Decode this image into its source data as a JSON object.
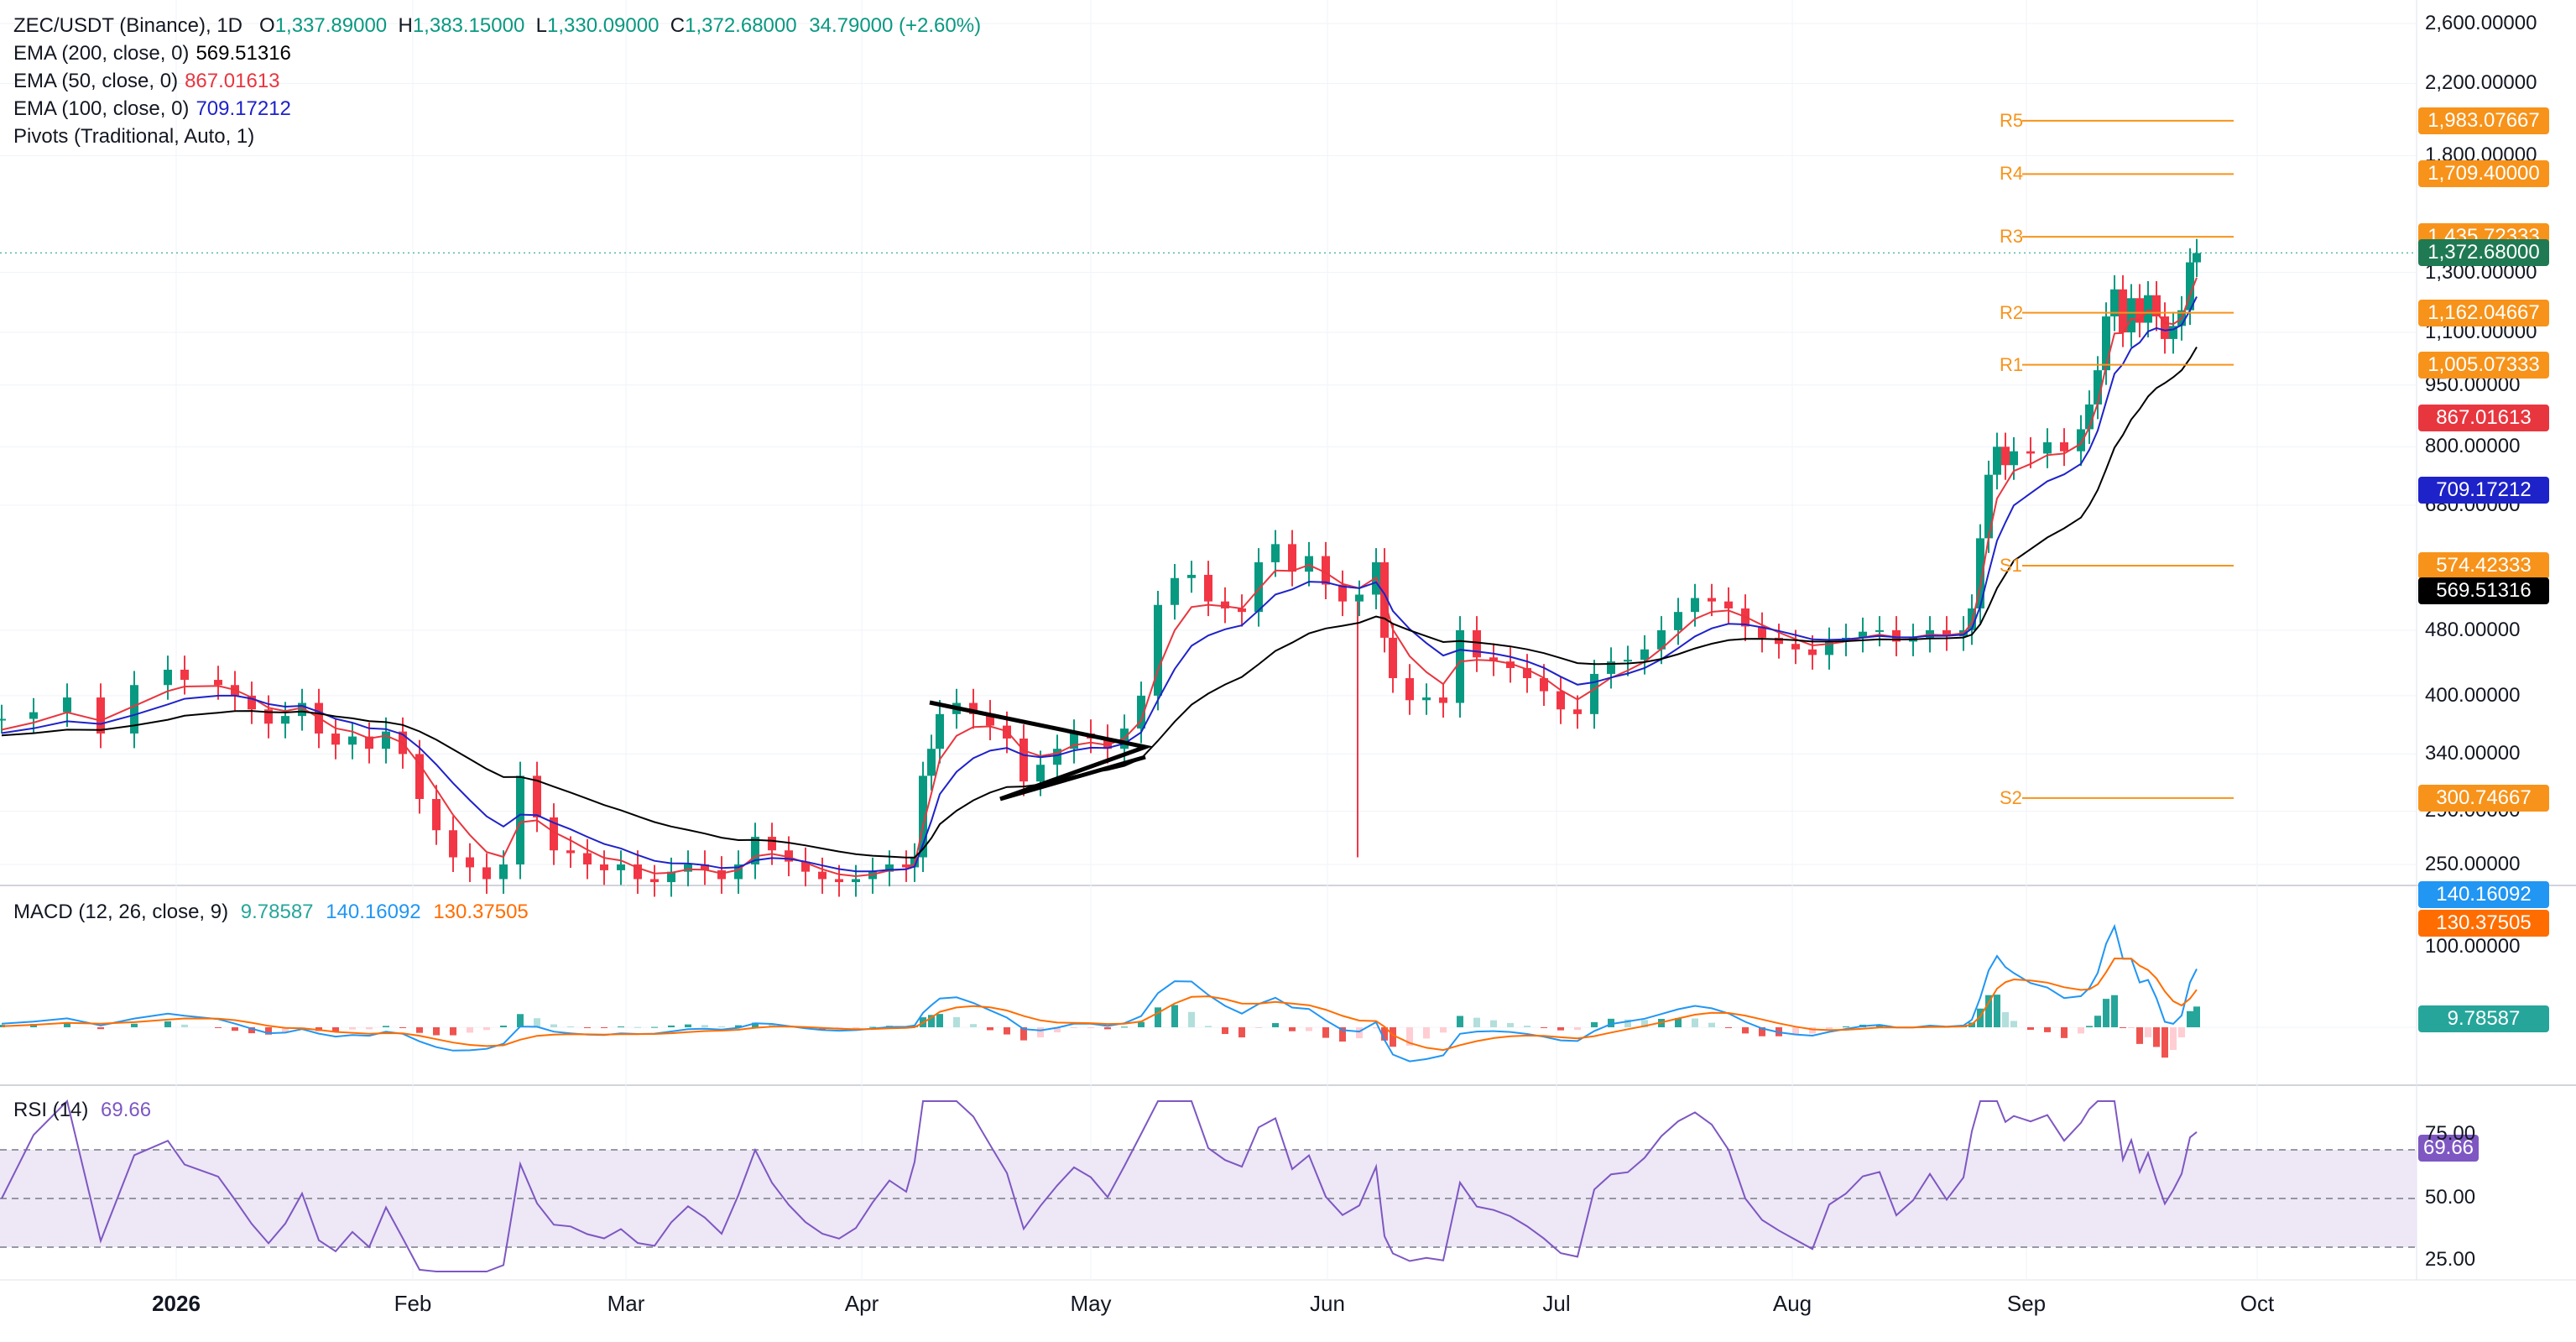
{
  "chart_data": {
    "type": "candlestick",
    "symbol": "ZEC/USDT",
    "exchange": "Binance",
    "interval": "1D",
    "ohlc": {
      "o": "1,337.89000",
      "h": "1,383.15000",
      "l": "1,330.09000",
      "c": "1,372.68000",
      "chg": "34.79000 (+2.60%)"
    },
    "last_price": "1,372.68000",
    "price_axis": {
      "type": "log",
      "range": [
        230,
        2650
      ],
      "ticks": [
        "2,600.00000",
        "2,200.00000",
        "1,800.00000",
        "1,300.00000",
        "1,100.00000",
        "950.00000",
        "800.00000",
        "680.00000",
        "480.00000",
        "400.00000",
        "340.00000",
        "290.00000",
        "250.00000"
      ]
    },
    "x_axis_labels": [
      "2026",
      "Feb",
      "Mar",
      "Apr",
      "May",
      "Jun",
      "Jul",
      "Aug",
      "Sep",
      "Oct"
    ],
    "candles_daily_close_approx": [
      [
        1,
        375
      ],
      [
        20,
        382
      ],
      [
        40,
        398
      ],
      [
        60,
        360
      ],
      [
        80,
        412
      ],
      [
        100,
        430
      ],
      [
        110,
        418
      ],
      [
        130,
        412
      ],
      [
        140,
        400
      ],
      [
        150,
        385
      ],
      [
        160,
        370
      ],
      [
        170,
        378
      ],
      [
        180,
        392
      ],
      [
        190,
        360
      ],
      [
        200,
        349
      ],
      [
        210,
        357
      ],
      [
        220,
        345
      ],
      [
        230,
        362
      ],
      [
        240,
        340
      ],
      [
        250,
        300
      ],
      [
        260,
        275
      ],
      [
        270,
        255
      ],
      [
        280,
        248
      ],
      [
        290,
        240
      ],
      [
        300,
        250
      ],
      [
        310,
        320
      ],
      [
        320,
        285
      ],
      [
        330,
        260
      ],
      [
        340,
        258
      ],
      [
        350,
        250
      ],
      [
        360,
        246
      ],
      [
        370,
        250
      ],
      [
        380,
        240
      ],
      [
        390,
        238
      ],
      [
        400,
        245
      ],
      [
        410,
        250
      ],
      [
        420,
        246
      ],
      [
        430,
        240
      ],
      [
        440,
        250
      ],
      [
        450,
        270
      ],
      [
        460,
        260
      ],
      [
        470,
        252
      ],
      [
        480,
        245
      ],
      [
        490,
        240
      ],
      [
        500,
        238
      ],
      [
        510,
        240
      ],
      [
        520,
        245
      ],
      [
        530,
        250
      ],
      [
        540,
        248
      ],
      [
        545,
        255
      ],
      [
        550,
        320
      ],
      [
        555,
        345
      ],
      [
        560,
        380
      ],
      [
        570,
        392
      ],
      [
        580,
        380
      ],
      [
        590,
        368
      ],
      [
        600,
        355
      ],
      [
        610,
        315
      ],
      [
        620,
        330
      ],
      [
        630,
        345
      ],
      [
        640,
        360
      ],
      [
        650,
        355
      ],
      [
        660,
        345
      ],
      [
        670,
        365
      ],
      [
        680,
        400
      ],
      [
        690,
        515
      ],
      [
        700,
        555
      ],
      [
        710,
        560
      ],
      [
        720,
        520
      ],
      [
        730,
        510
      ],
      [
        740,
        505
      ],
      [
        750,
        580
      ],
      [
        760,
        610
      ],
      [
        770,
        565
      ],
      [
        780,
        590
      ],
      [
        790,
        545
      ],
      [
        800,
        520
      ],
      [
        810,
        530
      ],
      [
        820,
        580
      ],
      [
        825,
        470
      ],
      [
        830,
        420
      ],
      [
        840,
        395
      ],
      [
        850,
        398
      ],
      [
        860,
        392
      ],
      [
        870,
        480
      ],
      [
        880,
        445
      ],
      [
        890,
        440
      ],
      [
        900,
        432
      ],
      [
        910,
        420
      ],
      [
        920,
        405
      ],
      [
        930,
        385
      ],
      [
        940,
        380
      ],
      [
        950,
        425
      ],
      [
        960,
        440
      ],
      [
        970,
        442
      ],
      [
        980,
        455
      ],
      [
        990,
        480
      ],
      [
        1000,
        505
      ],
      [
        1010,
        525
      ],
      [
        1020,
        520
      ],
      [
        1030,
        510
      ],
      [
        1040,
        485
      ],
      [
        1050,
        470
      ],
      [
        1060,
        462
      ],
      [
        1070,
        455
      ],
      [
        1080,
        448
      ],
      [
        1090,
        465
      ],
      [
        1100,
        470
      ],
      [
        1110,
        478
      ],
      [
        1120,
        480
      ],
      [
        1130,
        465
      ],
      [
        1140,
        470
      ],
      [
        1150,
        480
      ],
      [
        1160,
        472
      ],
      [
        1170,
        480
      ],
      [
        1175,
        510
      ],
      [
        1180,
        620
      ],
      [
        1185,
        740
      ],
      [
        1190,
        800
      ],
      [
        1195,
        760
      ],
      [
        1200,
        790
      ],
      [
        1210,
        785
      ],
      [
        1220,
        810
      ],
      [
        1230,
        790
      ],
      [
        1240,
        840
      ],
      [
        1245,
        900
      ],
      [
        1250,
        990
      ],
      [
        1255,
        1150
      ],
      [
        1260,
        1240
      ],
      [
        1265,
        1100
      ],
      [
        1270,
        1210
      ],
      [
        1275,
        1130
      ],
      [
        1280,
        1220
      ],
      [
        1285,
        1150
      ],
      [
        1290,
        1080
      ],
      [
        1295,
        1120
      ],
      [
        1300,
        1170
      ],
      [
        1305,
        1337
      ],
      [
        1309,
        1372
      ]
    ],
    "indicators": {
      "ema200": {
        "label": "EMA (200, close, 0)",
        "value": "569.51316",
        "color": "#000000"
      },
      "ema50": {
        "label": "EMA (50, close, 0)",
        "value": "867.01613",
        "color": "#e8363f"
      },
      "ema100": {
        "label": "EMA (100, close, 0)",
        "value": "709.17212",
        "color": "#1e22c9"
      },
      "pivots": {
        "label": "Pivots (Traditional, Auto, 1)",
        "color": "#f7931a",
        "levels": [
          {
            "name": "R5",
            "value": "1,983.07667",
            "v": 1983.07667
          },
          {
            "name": "R4",
            "value": "1,709.40000",
            "v": 1709.4
          },
          {
            "name": "R3",
            "value": "1,435.72333",
            "v": 1435.72333
          },
          {
            "name": "R2",
            "value": "1,162.04667",
            "v": 1162.04667
          },
          {
            "name": "R1",
            "value": "1,005.07333",
            "v": 1005.07333
          },
          {
            "name": "S1",
            "value": "574.42333",
            "v": 574.42333
          },
          {
            "name": "S2",
            "value": "300.74667",
            "v": 300.74667
          }
        ]
      },
      "macd": {
        "label": "MACD (12, 26, close, 9)",
        "hist": "9.78587",
        "macd": "140.16092",
        "signal": "130.37505",
        "axis_tick": "100.00000",
        "colors": {
          "macd": "#2196f3",
          "signal": "#ff6d00",
          "hist_up": "#26a69a",
          "hist_down": "#ef5350"
        }
      },
      "rsi": {
        "label": "RSI (14)",
        "value": "69.66",
        "color": "#7e57c2",
        "ticks": [
          "75.00",
          "50.00",
          "25.00"
        ]
      }
    },
    "triangle_pattern": {
      "start_date": "Apr",
      "end_date": "May"
    }
  }
}
